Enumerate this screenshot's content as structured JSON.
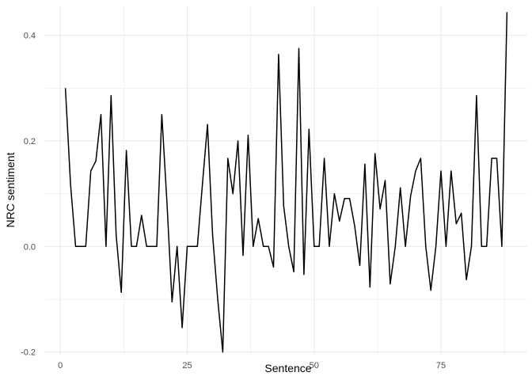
{
  "chart_data": {
    "type": "line",
    "title": "",
    "xlabel": "Sentence",
    "ylabel": "NRC sentiment",
    "xlim": [
      -3,
      92
    ],
    "ylim": [
      -0.205,
      0.455
    ],
    "x_ticks": [
      0,
      25,
      50,
      75
    ],
    "x_tick_labels": [
      "0",
      "25",
      "50",
      "75"
    ],
    "x_minor_ticks": [
      12.5,
      37.5,
      62.5,
      87.5
    ],
    "y_ticks": [
      -0.2,
      0.0,
      0.2,
      0.4
    ],
    "y_tick_labels": [
      "-0.2",
      "0.0",
      "0.2",
      "0.4"
    ],
    "y_minor_ticks": [
      -0.1,
      0.1,
      0.3
    ],
    "grid": true,
    "line_color": "#000000",
    "grid_color": "#ebebeb",
    "x": [
      1,
      2,
      3,
      4,
      5,
      6,
      7,
      8,
      9,
      10,
      11,
      12,
      13,
      14,
      15,
      16,
      17,
      18,
      19,
      20,
      21,
      22,
      23,
      24,
      25,
      26,
      27,
      28,
      29,
      30,
      31,
      32,
      33,
      34,
      35,
      36,
      37,
      38,
      39,
      40,
      41,
      42,
      43,
      44,
      45,
      46,
      47,
      48,
      49,
      50,
      51,
      52,
      53,
      54,
      55,
      56,
      57,
      58,
      59,
      60,
      61,
      62,
      63,
      64,
      65,
      66,
      67,
      68,
      69,
      70,
      71,
      72,
      73,
      74,
      75,
      76,
      77,
      78,
      79,
      80,
      81,
      82,
      83,
      84,
      85,
      86,
      87,
      88
    ],
    "y": [
      0.3,
      0.118,
      0.0,
      0.0,
      0.0,
      0.143,
      0.162,
      0.25,
      0.0,
      0.286,
      0.022,
      -0.087,
      0.182,
      0.0,
      0.0,
      0.059,
      0.0,
      0.0,
      0.0,
      0.25,
      0.083,
      -0.105,
      0.0,
      -0.154,
      0.0,
      0.0,
      0.0,
      0.118,
      0.231,
      0.023,
      -0.1,
      -0.2,
      0.167,
      0.1,
      0.2,
      -0.017,
      0.211,
      0.0,
      0.053,
      0.0,
      0.0,
      -0.039,
      0.364,
      0.077,
      0.0,
      -0.048,
      0.375,
      -0.053,
      0.222,
      0.0,
      0.0,
      0.167,
      0.0,
      0.1,
      0.048,
      0.091,
      0.091,
      0.039,
      -0.036,
      0.156,
      -0.077,
      0.176,
      0.071,
      0.125,
      -0.071,
      0.0,
      0.111,
      0.0,
      0.095,
      0.143,
      0.167,
      0.0,
      -0.083,
      0.0,
      0.143,
      0.0,
      0.143,
      0.043,
      0.063,
      -0.063,
      0.0,
      0.286,
      0.0,
      0.0,
      0.167,
      0.167,
      0.0,
      0.444
    ]
  }
}
